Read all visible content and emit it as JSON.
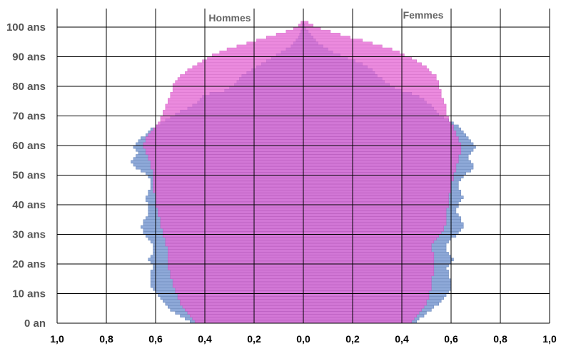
{
  "chart_data": {
    "type": "bar",
    "orientation": "horizontal",
    "labels": {
      "left": "Hommes",
      "right": "Femmes"
    },
    "x_tick_labels": [
      "1,0",
      "0,8",
      "0,6",
      "0,4",
      "0,2",
      "0,0",
      "0,2",
      "0,4",
      "0,6",
      "0,8",
      "1,0"
    ],
    "y_tick_labels": [
      "0 an",
      "10 ans",
      "20 ans",
      "30 ans",
      "40 ans",
      "50 ans",
      "60 ans",
      "70 ans",
      "80 ans",
      "90 ans",
      "100 ans"
    ],
    "xlim": [
      -1.0,
      1.0
    ],
    "ylim": [
      0,
      101
    ],
    "grid": true,
    "colors": {
      "series_a": "#8ea9d8",
      "series_a_edge": "#6a86b8",
      "series_b": "#e66ad6",
      "series_b_edge": "#c94ab8",
      "grid": "#000000",
      "age_labels": "#555555"
    },
    "ages": [
      0,
      1,
      2,
      3,
      4,
      5,
      6,
      7,
      8,
      9,
      10,
      11,
      12,
      13,
      14,
      15,
      16,
      17,
      18,
      19,
      20,
      21,
      22,
      23,
      24,
      25,
      26,
      27,
      28,
      29,
      30,
      31,
      32,
      33,
      34,
      35,
      36,
      37,
      38,
      39,
      40,
      41,
      42,
      43,
      44,
      45,
      46,
      47,
      48,
      49,
      50,
      51,
      52,
      53,
      54,
      55,
      56,
      57,
      58,
      59,
      60,
      61,
      62,
      63,
      64,
      65,
      66,
      67,
      68,
      69,
      70,
      71,
      72,
      73,
      74,
      75,
      76,
      77,
      78,
      79,
      80,
      81,
      82,
      83,
      84,
      85,
      86,
      87,
      88,
      89,
      90,
      91,
      92,
      93,
      94,
      95,
      96,
      97,
      98,
      99,
      100,
      101
    ],
    "series": [
      {
        "side": "left",
        "values_a": [
          0.46,
          0.48,
          0.5,
          0.52,
          0.54,
          0.55,
          0.56,
          0.57,
          0.58,
          0.59,
          0.6,
          0.61,
          0.62,
          0.62,
          0.62,
          0.62,
          0.62,
          0.62,
          0.61,
          0.61,
          0.62,
          0.63,
          0.62,
          0.61,
          0.61,
          0.61,
          0.61,
          0.62,
          0.63,
          0.64,
          0.65,
          0.65,
          0.66,
          0.65,
          0.65,
          0.64,
          0.63,
          0.63,
          0.63,
          0.63,
          0.63,
          0.64,
          0.64,
          0.63,
          0.63,
          0.62,
          0.62,
          0.62,
          0.62,
          0.63,
          0.64,
          0.66,
          0.68,
          0.69,
          0.7,
          0.69,
          0.68,
          0.67,
          0.68,
          0.69,
          0.68,
          0.67,
          0.66,
          0.64,
          0.63,
          0.62,
          0.6,
          0.58,
          0.56,
          0.54,
          0.52,
          0.5,
          0.47,
          0.45,
          0.43,
          0.42,
          0.41,
          0.38,
          0.32,
          0.3,
          0.28,
          0.27,
          0.26,
          0.25,
          0.23,
          0.21,
          0.19,
          0.17,
          0.15,
          0.13,
          0.11,
          0.09,
          0.07,
          0.05,
          0.04,
          0.03,
          0.02,
          0.015,
          0.01,
          0.006,
          0.004,
          0.002
        ],
        "values_b": [
          0.44,
          0.45,
          0.46,
          0.47,
          0.48,
          0.49,
          0.5,
          0.5,
          0.51,
          0.51,
          0.52,
          0.52,
          0.53,
          0.53,
          0.53,
          0.54,
          0.54,
          0.54,
          0.55,
          0.55,
          0.55,
          0.55,
          0.55,
          0.55,
          0.55,
          0.55,
          0.56,
          0.56,
          0.56,
          0.57,
          0.57,
          0.57,
          0.58,
          0.58,
          0.58,
          0.58,
          0.59,
          0.59,
          0.59,
          0.6,
          0.6,
          0.6,
          0.6,
          0.6,
          0.61,
          0.61,
          0.61,
          0.61,
          0.61,
          0.61,
          0.61,
          0.61,
          0.62,
          0.62,
          0.62,
          0.63,
          0.63,
          0.64,
          0.64,
          0.65,
          0.65,
          0.64,
          0.64,
          0.63,
          0.62,
          0.61,
          0.6,
          0.59,
          0.58,
          0.58,
          0.57,
          0.57,
          0.56,
          0.56,
          0.55,
          0.55,
          0.54,
          0.54,
          0.53,
          0.53,
          0.53,
          0.52,
          0.51,
          0.5,
          0.48,
          0.47,
          0.45,
          0.43,
          0.41,
          0.39,
          0.37,
          0.34,
          0.31,
          0.27,
          0.23,
          0.19,
          0.15,
          0.11,
          0.07,
          0.04,
          0.02,
          0.01
        ]
      },
      {
        "side": "right",
        "values_a": [
          0.46,
          0.47,
          0.49,
          0.5,
          0.52,
          0.53,
          0.55,
          0.56,
          0.57,
          0.58,
          0.59,
          0.6,
          0.6,
          0.6,
          0.6,
          0.59,
          0.59,
          0.59,
          0.58,
          0.59,
          0.6,
          0.61,
          0.6,
          0.59,
          0.58,
          0.58,
          0.58,
          0.59,
          0.6,
          0.62,
          0.63,
          0.64,
          0.65,
          0.65,
          0.64,
          0.64,
          0.63,
          0.62,
          0.62,
          0.63,
          0.63,
          0.64,
          0.65,
          0.64,
          0.64,
          0.63,
          0.63,
          0.63,
          0.64,
          0.65,
          0.66,
          0.68,
          0.69,
          0.69,
          0.68,
          0.67,
          0.67,
          0.68,
          0.69,
          0.7,
          0.69,
          0.68,
          0.67,
          0.66,
          0.65,
          0.64,
          0.63,
          0.61,
          0.59,
          0.57,
          0.55,
          0.54,
          0.53,
          0.52,
          0.5,
          0.49,
          0.47,
          0.44,
          0.4,
          0.37,
          0.35,
          0.33,
          0.32,
          0.3,
          0.29,
          0.28,
          0.26,
          0.24,
          0.21,
          0.18,
          0.15,
          0.12,
          0.1,
          0.08,
          0.06,
          0.05,
          0.04,
          0.03,
          0.02,
          0.01,
          0.005,
          0.002
        ],
        "values_b": [
          0.44,
          0.45,
          0.46,
          0.47,
          0.48,
          0.49,
          0.5,
          0.5,
          0.51,
          0.51,
          0.51,
          0.52,
          0.52,
          0.52,
          0.52,
          0.52,
          0.53,
          0.53,
          0.53,
          0.53,
          0.53,
          0.53,
          0.53,
          0.53,
          0.52,
          0.52,
          0.52,
          0.53,
          0.54,
          0.55,
          0.56,
          0.57,
          0.57,
          0.58,
          0.58,
          0.58,
          0.58,
          0.58,
          0.58,
          0.59,
          0.59,
          0.59,
          0.59,
          0.59,
          0.6,
          0.6,
          0.6,
          0.6,
          0.61,
          0.61,
          0.61,
          0.62,
          0.62,
          0.62,
          0.63,
          0.63,
          0.63,
          0.64,
          0.64,
          0.64,
          0.64,
          0.63,
          0.63,
          0.62,
          0.62,
          0.61,
          0.61,
          0.6,
          0.59,
          0.59,
          0.58,
          0.58,
          0.58,
          0.58,
          0.57,
          0.57,
          0.56,
          0.56,
          0.56,
          0.55,
          0.55,
          0.55,
          0.54,
          0.54,
          0.52,
          0.51,
          0.5,
          0.48,
          0.46,
          0.44,
          0.41,
          0.39,
          0.36,
          0.32,
          0.28,
          0.24,
          0.19,
          0.15,
          0.11,
          0.07,
          0.04,
          0.02
        ]
      }
    ]
  }
}
